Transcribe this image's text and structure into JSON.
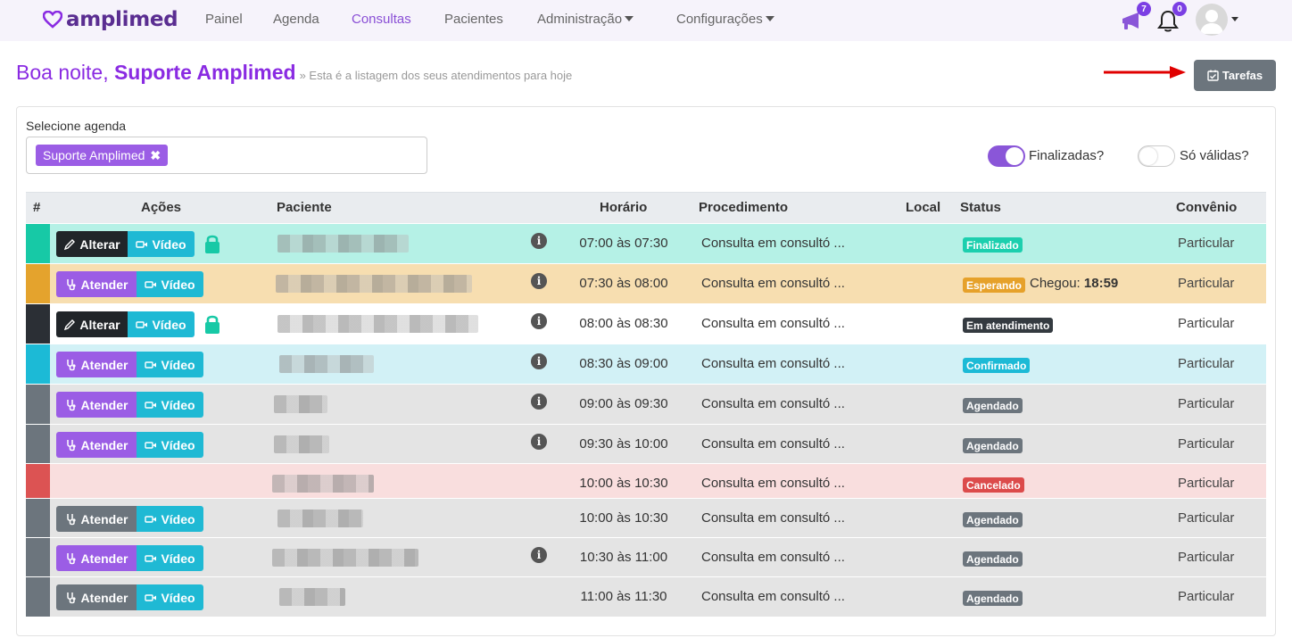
{
  "app": {
    "logo_text": "amplimed",
    "brand_color": "#5a2d91",
    "accent_color": "#8a2be2"
  },
  "nav": {
    "items": [
      {
        "label": "Painel",
        "active": false
      },
      {
        "label": "Agenda",
        "active": false
      },
      {
        "label": "Consultas",
        "active": true
      },
      {
        "label": "Pacientes",
        "active": false
      },
      {
        "label": "Administração",
        "active": false,
        "dropdown": true
      },
      {
        "label": "Configurações",
        "active": false,
        "dropdown": true
      }
    ],
    "megaphone_badge": "7",
    "bell_badge": "0",
    "icons": [
      "megaphone-icon",
      "bell-icon",
      "user-avatar-icon"
    ]
  },
  "header": {
    "greeting": "Boa noite, ",
    "user": "Suporte Amplimed",
    "subtitle": "» Esta é a listagem dos seus atendimentos para hoje",
    "tasks_button": "Tarefas"
  },
  "filters": {
    "select_label": "Selecione agenda",
    "selected_chip": "Suporte Amplimed",
    "finalizadas_label": "Finalizadas?",
    "finalizadas_on": true,
    "so_validas_label": "Só válidas?",
    "so_validas_on": false
  },
  "table": {
    "columns": [
      "#",
      "Ações",
      "Paciente",
      "Horário",
      "Procedimento",
      "Local",
      "Status",
      "Convênio"
    ],
    "rows": [
      {
        "action": "Alterar",
        "video": "Vídeo",
        "locked": true,
        "info": true,
        "time": "07:00 às 07:30",
        "procedure": "Consulta em consultó ...",
        "status": "Finalizado",
        "status_color": "#1ccfae",
        "convenio": "Particular",
        "bg": "#b5f1e6",
        "stripe": "#17c9a6"
      },
      {
        "action": "Atender",
        "video": "Vídeo",
        "locked": false,
        "info": true,
        "time": "07:30 às 08:00",
        "procedure": "Consulta em consultó ...",
        "status": "Esperando",
        "status_color": "#e6a12a",
        "chegou_label": "Chegou:",
        "chegou_time": "18:59",
        "convenio": "Particular",
        "bg": "#f7deb0",
        "stripe": "#e4a32d"
      },
      {
        "action": "Alterar",
        "video": "Vídeo",
        "locked": true,
        "info": true,
        "time": "08:00 às 08:30",
        "procedure": "Consulta em consultó ...",
        "status": "Em atendimento",
        "status_color": "#343a40",
        "convenio": "Particular",
        "bg": "#ffffff",
        "stripe": "#2b2f35"
      },
      {
        "action": "Atender",
        "video": "Vídeo",
        "locked": false,
        "info": true,
        "time": "08:30 às 09:00",
        "procedure": "Consulta em consultó ...",
        "status": "Confirmado",
        "status_color": "#1cbad6",
        "convenio": "Particular",
        "bg": "#d2f1f6",
        "stripe": "#1cbad6"
      },
      {
        "action": "Atender",
        "video": "Vídeo",
        "locked": false,
        "info": true,
        "time": "09:00 às 09:30",
        "procedure": "Consulta em consultó ...",
        "status": "Agendado",
        "status_color": "#6c757d",
        "convenio": "Particular",
        "bg": "#e4e4e4",
        "stripe": "#6c757d"
      },
      {
        "action": "Atender",
        "video": "Vídeo",
        "locked": false,
        "info": true,
        "time": "09:30 às 10:00",
        "procedure": "Consulta em consultó ...",
        "status": "Agendado",
        "status_color": "#6c757d",
        "convenio": "Particular",
        "bg": "#e4e4e4",
        "stripe": "#6c757d"
      },
      {
        "action": "",
        "video": "",
        "locked": false,
        "info": false,
        "time": "10:00 às 10:30",
        "procedure": "Consulta em consultó ...",
        "status": "Cancelado",
        "status_color": "#dc4b4b",
        "convenio": "Particular",
        "bg": "#f9dede",
        "stripe": "#dc5353"
      },
      {
        "action": "Atender",
        "video": "Vídeo",
        "locked": false,
        "info": false,
        "time": "10:00 às 10:30",
        "procedure": "Consulta em consultó ...",
        "status": "Agendado",
        "status_color": "#6c757d",
        "convenio": "Particular",
        "bg": "#e4e4e4",
        "stripe": "#6c757d",
        "action_gray": true
      },
      {
        "action": "Atender",
        "video": "Vídeo",
        "locked": false,
        "info": true,
        "time": "10:30 às 11:00",
        "procedure": "Consulta em consultó ...",
        "status": "Agendado",
        "status_color": "#6c757d",
        "convenio": "Particular",
        "bg": "#e4e4e4",
        "stripe": "#6c757d"
      },
      {
        "action": "Atender",
        "video": "Vídeo",
        "locked": false,
        "info": false,
        "time": "11:00 às 11:30",
        "procedure": "Consulta em consultó ...",
        "status": "Agendado",
        "status_color": "#6c757d",
        "convenio": "Particular",
        "bg": "#e4e4e4",
        "stripe": "#6c757d",
        "action_gray": true
      }
    ]
  }
}
